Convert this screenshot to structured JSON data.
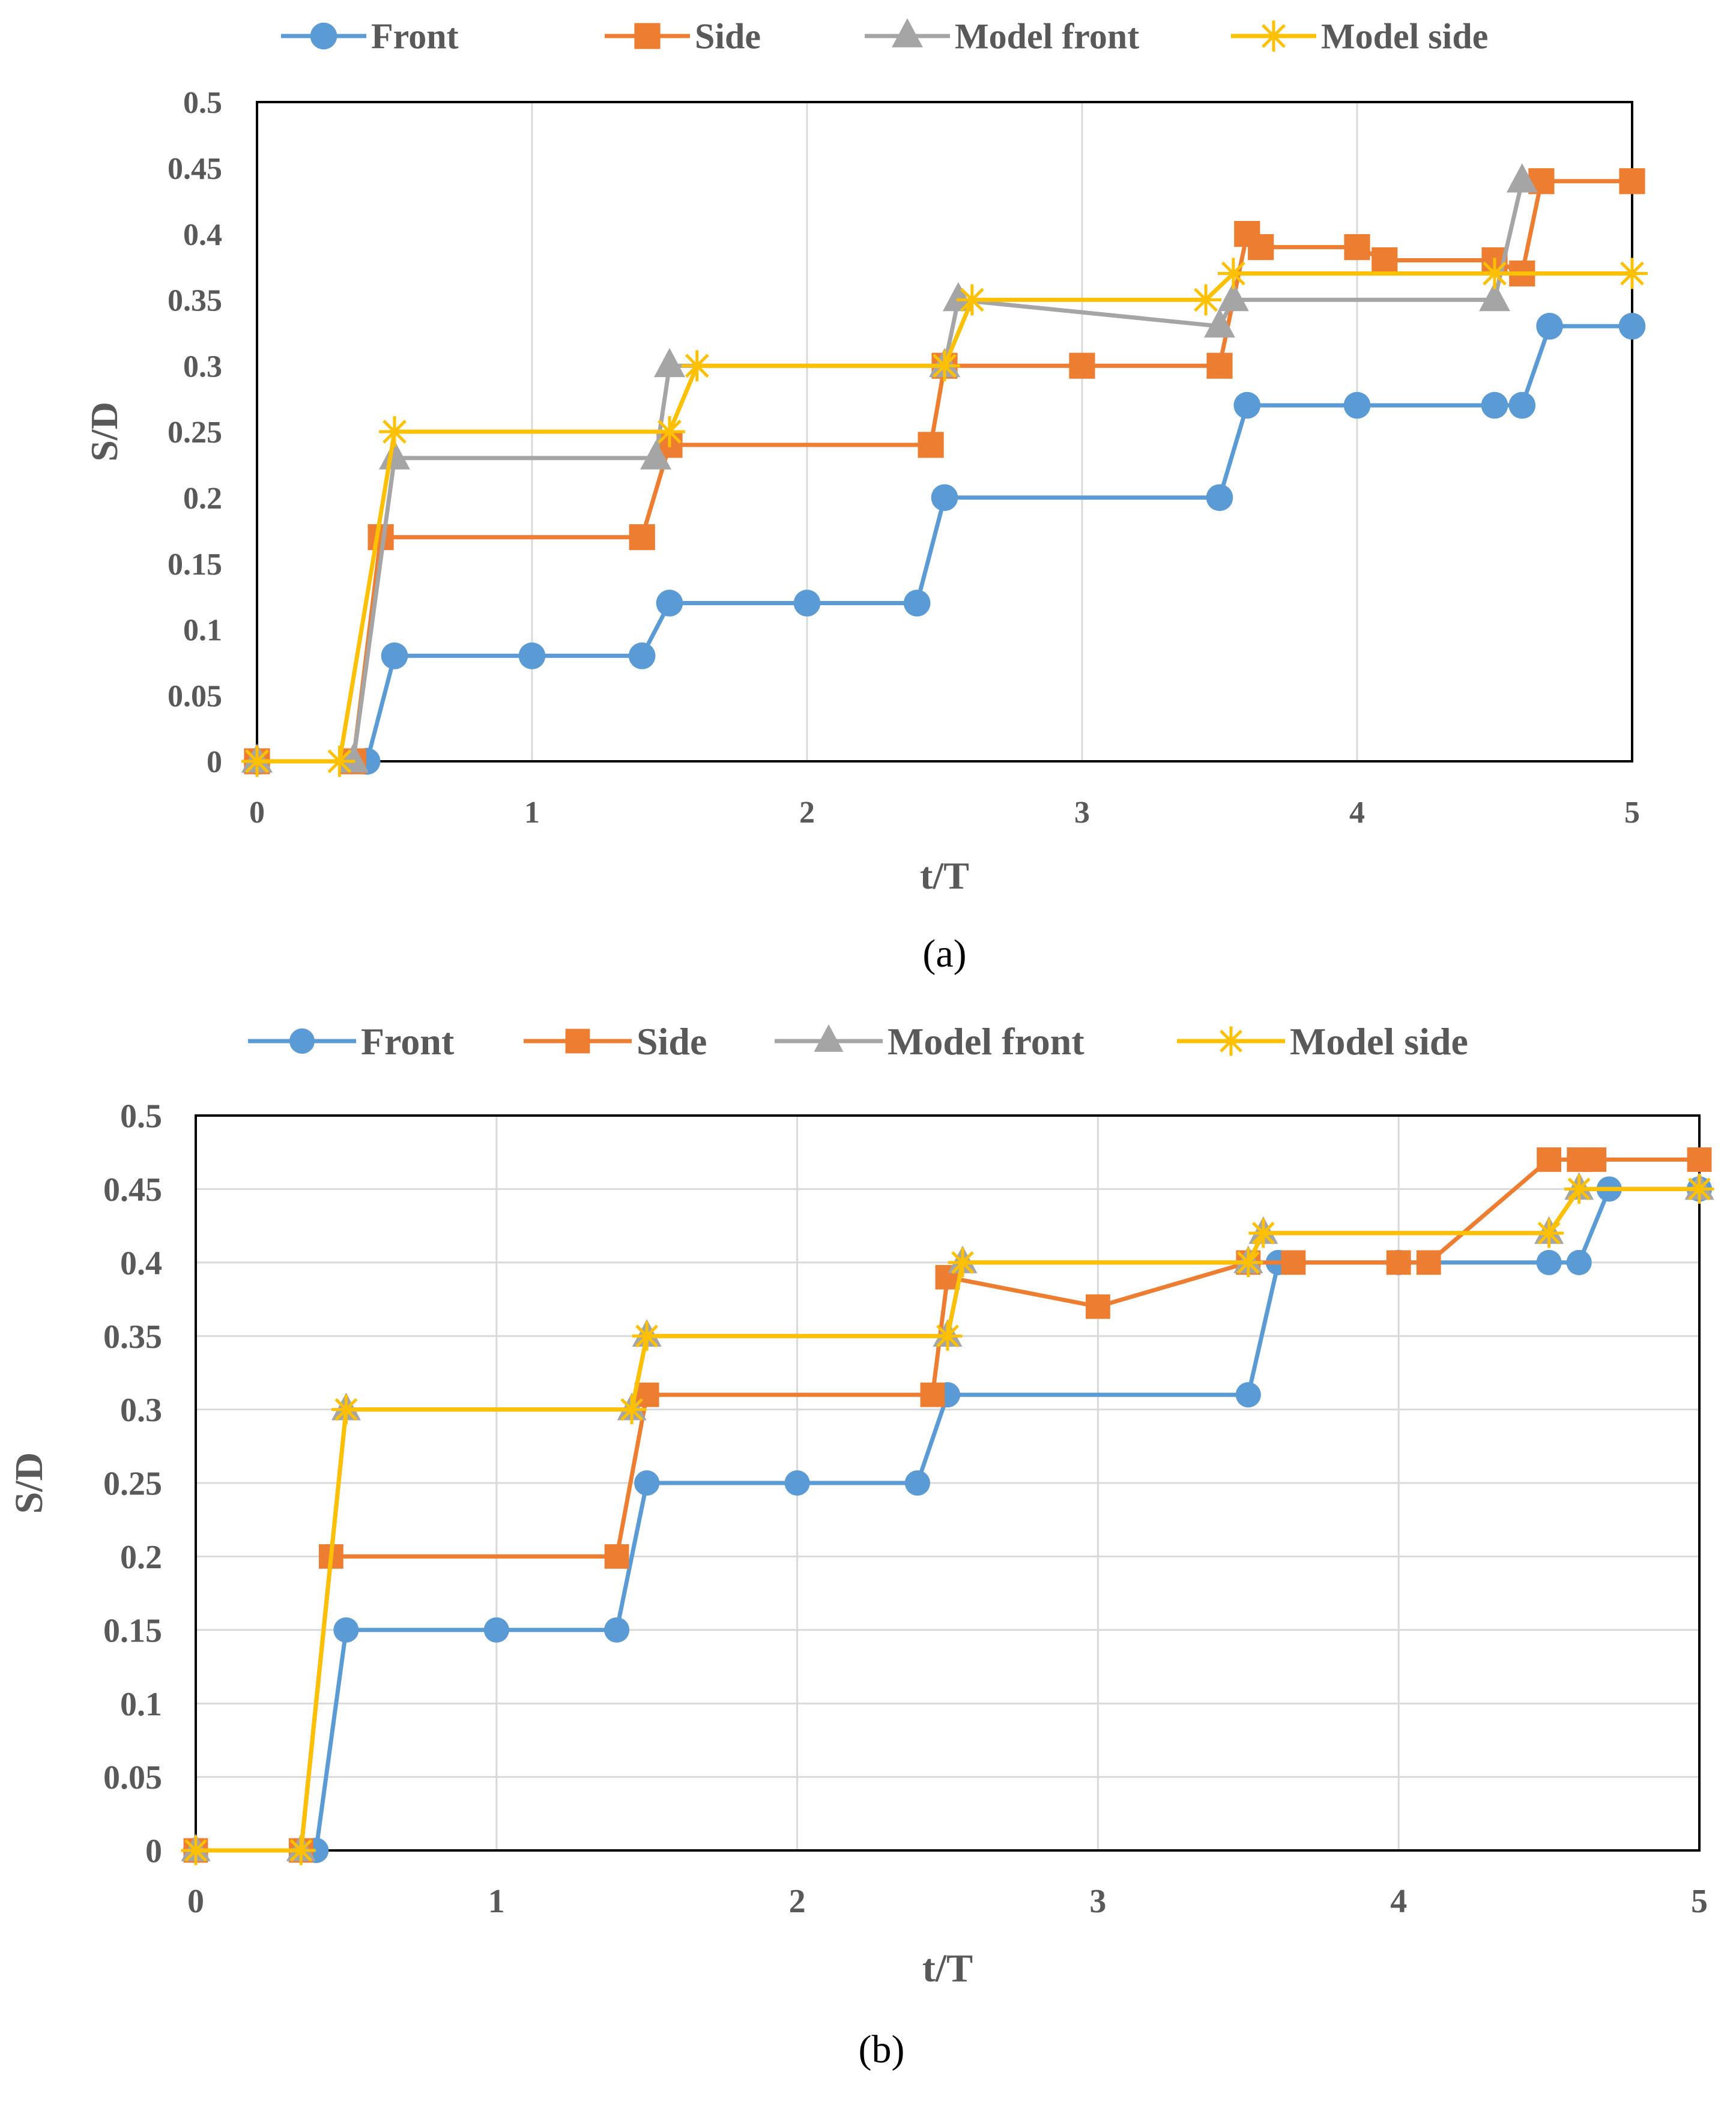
{
  "chart_data": [
    {
      "type": "line",
      "panel_label": "(a)",
      "xlabel": "t/T",
      "ylabel": "S/D",
      "xlim": [
        0,
        5
      ],
      "ylim": [
        0,
        0.5
      ],
      "x_ticks": [
        0,
        1,
        2,
        3,
        4,
        5
      ],
      "x_tick_labels": [
        "0",
        "1",
        "2",
        "3",
        "4",
        "5"
      ],
      "y_ticks": [
        0,
        0.05,
        0.1,
        0.15,
        0.2,
        0.25,
        0.3,
        0.35,
        0.4,
        0.45,
        0.5
      ],
      "y_tick_labels": [
        "0",
        "0.05",
        "0.1",
        "0.15",
        "0.2",
        "0.25",
        "0.3",
        "0.35",
        "0.4",
        "0.45",
        "0.5"
      ],
      "grid": "vertical",
      "legend_position": "top",
      "series": [
        {
          "name": "Front",
          "marker": "circle",
          "color": "#5B9BD5",
          "points": [
            [
              0,
              0
            ],
            [
              0.4,
              0
            ],
            [
              0.5,
              0.08
            ],
            [
              1.0,
              0.08
            ],
            [
              1.4,
              0.08
            ],
            [
              1.5,
              0.12
            ],
            [
              2.0,
              0.12
            ],
            [
              2.4,
              0.12
            ],
            [
              2.5,
              0.2
            ],
            [
              3.5,
              0.2
            ],
            [
              3.6,
              0.27
            ],
            [
              4.0,
              0.27
            ],
            [
              4.5,
              0.27
            ],
            [
              4.6,
              0.27
            ],
            [
              4.7,
              0.33
            ],
            [
              5.0,
              0.33
            ]
          ]
        },
        {
          "name": "Side",
          "marker": "square",
          "color": "#ED7D31",
          "points": [
            [
              0,
              0
            ],
            [
              0.35,
              0
            ],
            [
              0.45,
              0.17
            ],
            [
              1.4,
              0.17
            ],
            [
              1.5,
              0.24
            ],
            [
              2.45,
              0.24
            ],
            [
              2.5,
              0.3
            ],
            [
              3.0,
              0.3
            ],
            [
              3.5,
              0.3
            ],
            [
              3.6,
              0.4
            ],
            [
              3.65,
              0.39
            ],
            [
              4.0,
              0.39
            ],
            [
              4.1,
              0.38
            ],
            [
              4.5,
              0.38
            ],
            [
              4.6,
              0.37
            ],
            [
              4.67,
              0.44
            ],
            [
              5.0,
              0.44
            ]
          ]
        },
        {
          "name": "Model front",
          "marker": "triangle",
          "color": "#A5A5A5",
          "points": [
            [
              0,
              0
            ],
            [
              0.35,
              0
            ],
            [
              0.5,
              0.23
            ],
            [
              1.45,
              0.23
            ],
            [
              1.5,
              0.3
            ],
            [
              2.5,
              0.3
            ],
            [
              2.55,
              0.35
            ],
            [
              3.5,
              0.33
            ],
            [
              3.55,
              0.35
            ],
            [
              4.5,
              0.35
            ],
            [
              4.6,
              0.44
            ]
          ]
        },
        {
          "name": "Model side",
          "marker": "star",
          "color": "#FFC000",
          "points": [
            [
              0,
              0
            ],
            [
              0.3,
              0
            ],
            [
              0.5,
              0.25
            ],
            [
              1.5,
              0.25
            ],
            [
              1.6,
              0.3
            ],
            [
              2.5,
              0.3
            ],
            [
              2.6,
              0.35
            ],
            [
              3.45,
              0.35
            ],
            [
              3.55,
              0.37
            ],
            [
              4.5,
              0.37
            ],
            [
              5.0,
              0.37
            ]
          ]
        }
      ]
    },
    {
      "type": "line",
      "panel_label": "(b)",
      "xlabel": "t/T",
      "ylabel": "S/D",
      "xlim": [
        0,
        5
      ],
      "ylim": [
        0,
        0.5
      ],
      "x_ticks": [
        0,
        1,
        2,
        3,
        4,
        5
      ],
      "x_tick_labels": [
        "0",
        "1",
        "2",
        "3",
        "4",
        "5"
      ],
      "y_ticks": [
        0,
        0.05,
        0.1,
        0.15,
        0.2,
        0.25,
        0.3,
        0.35,
        0.4,
        0.45,
        0.5
      ],
      "y_tick_labels": [
        "0",
        "0.05",
        "0.1",
        "0.15",
        "0.2",
        "0.25",
        "0.3",
        "0.35",
        "0.4",
        "0.45",
        "0.5"
      ],
      "grid": "both",
      "legend_position": "top",
      "series": [
        {
          "name": "Front",
          "marker": "circle",
          "color": "#5B9BD5",
          "points": [
            [
              0,
              0
            ],
            [
              0.4,
              0
            ],
            [
              0.5,
              0.15
            ],
            [
              1.0,
              0.15
            ],
            [
              1.4,
              0.15
            ],
            [
              1.5,
              0.25
            ],
            [
              2.0,
              0.25
            ],
            [
              2.4,
              0.25
            ],
            [
              2.5,
              0.31
            ],
            [
              3.5,
              0.31
            ],
            [
              3.6,
              0.4
            ],
            [
              4.0,
              0.4
            ],
            [
              4.5,
              0.4
            ],
            [
              4.6,
              0.4
            ],
            [
              4.7,
              0.45
            ],
            [
              5.0,
              0.45
            ]
          ]
        },
        {
          "name": "Side",
          "marker": "square",
          "color": "#ED7D31",
          "points": [
            [
              0,
              0
            ],
            [
              0.35,
              0
            ],
            [
              0.45,
              0.2
            ],
            [
              1.4,
              0.2
            ],
            [
              1.5,
              0.31
            ],
            [
              2.45,
              0.31
            ],
            [
              2.5,
              0.39
            ],
            [
              3.0,
              0.37
            ],
            [
              3.5,
              0.4
            ],
            [
              3.65,
              0.4
            ],
            [
              4.0,
              0.4
            ],
            [
              4.1,
              0.4
            ],
            [
              4.5,
              0.47
            ],
            [
              4.6,
              0.47
            ],
            [
              4.65,
              0.47
            ],
            [
              5.0,
              0.47
            ]
          ]
        },
        {
          "name": "Model front",
          "marker": "triangle",
          "color": "#A5A5A5",
          "points": [
            [
              0,
              0
            ],
            [
              0.35,
              0
            ],
            [
              0.5,
              0.3
            ],
            [
              1.45,
              0.3
            ],
            [
              1.5,
              0.35
            ],
            [
              2.5,
              0.35
            ],
            [
              2.55,
              0.4
            ],
            [
              3.5,
              0.4
            ],
            [
              3.55,
              0.42
            ],
            [
              4.5,
              0.42
            ],
            [
              4.6,
              0.45
            ],
            [
              5.0,
              0.45
            ]
          ]
        },
        {
          "name": "Model side",
          "marker": "star",
          "color": "#FFC000",
          "points": [
            [
              0,
              0
            ],
            [
              0.35,
              0
            ],
            [
              0.5,
              0.3
            ],
            [
              1.45,
              0.3
            ],
            [
              1.5,
              0.35
            ],
            [
              2.5,
              0.35
            ],
            [
              2.55,
              0.4
            ],
            [
              3.5,
              0.4
            ],
            [
              3.55,
              0.42
            ],
            [
              4.5,
              0.42
            ],
            [
              4.6,
              0.45
            ],
            [
              5.0,
              0.45
            ]
          ]
        }
      ]
    }
  ]
}
